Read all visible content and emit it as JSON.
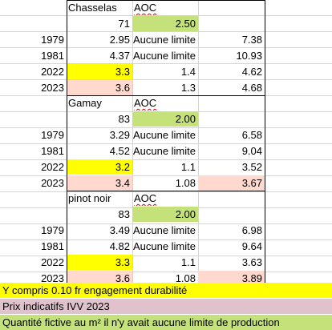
{
  "colors": {
    "yellow": "#ffff00",
    "green": "#c5e17a",
    "pink": "#ffd8ce",
    "mauve": "#e0c2cd",
    "grid": "#d4d4d4"
  },
  "blocks": [
    {
      "name": "Chasselas",
      "header_label": "AOC",
      "header_left_value": "71",
      "header_value": "2.50",
      "rows": [
        {
          "year": "1979",
          "b": "2.95",
          "c": "Aucune limite",
          "d": "7.38"
        },
        {
          "year": "1981",
          "b": "4.37",
          "c": "Aucune limite",
          "d": "10.93"
        },
        {
          "year": "2022",
          "b": "3.3",
          "c": "1.4",
          "d": "4.62"
        },
        {
          "year": "2023",
          "b": "3.6",
          "c": "1.3",
          "d": "4.68"
        }
      ]
    },
    {
      "name": "Gamay",
      "header_label": "AOC",
      "header_left_value": "83",
      "header_value": "2.00",
      "rows": [
        {
          "year": "1979",
          "b": "3.29",
          "c": "Aucune limite",
          "d": "6.58"
        },
        {
          "year": "1981",
          "b": "4.52",
          "c": "Aucune limite",
          "d": "9.04"
        },
        {
          "year": "2022",
          "b": "3.2",
          "c": "1.1",
          "d": "3.52"
        },
        {
          "year": "2023",
          "b": "3.4",
          "c": "1.08",
          "d": "3.67"
        }
      ]
    },
    {
      "name": "pinot noir",
      "header_label": "AOC",
      "header_left_value": "83",
      "header_value": "2.00",
      "rows": [
        {
          "year": "1979",
          "b": "3.49",
          "c": "Aucune limite",
          "d": "6.98"
        },
        {
          "year": "1981",
          "b": "4.82",
          "c": "Aucune limite",
          "d": "9.64"
        },
        {
          "year": "2022",
          "b": "3.3",
          "c": "1.1",
          "d": "3.63"
        },
        {
          "year": "2023",
          "b": "3.6",
          "c": "1.08",
          "d": "3.89"
        }
      ]
    }
  ],
  "notes": [
    {
      "text": "Y compris 0.10 fr engagement durabilité",
      "color": "#ffff00"
    },
    {
      "text": "Prix indicatifs IVV 2023",
      "color": "#e0c2cd"
    },
    {
      "text": "Quantité fictive au m² il n'y avait aucune limite de production",
      "color": "#c5e17a"
    }
  ]
}
